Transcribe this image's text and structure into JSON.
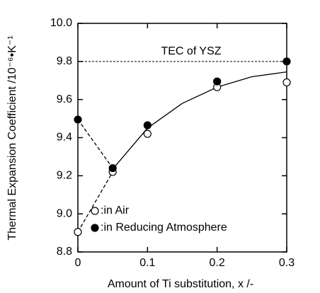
{
  "chart_data": {
    "type": "scatter",
    "xlabel": "Amount of Ti substitution, x /-",
    "ylabel": "Thermal Expansion Coefficient /10⁻⁶•K⁻¹",
    "x": [
      0,
      0.05,
      0.1,
      0.2,
      0.3
    ],
    "series": [
      {
        "name": ":in Air",
        "color": "#000000",
        "marker": "open",
        "values": [
          8.905,
          9.22,
          9.42,
          9.665,
          9.69
        ]
      },
      {
        "name": ":in Reducing Atmosphere",
        "color": "#000000",
        "marker": "filled",
        "values": [
          9.495,
          9.24,
          9.465,
          9.695,
          9.8
        ]
      }
    ],
    "curve": {
      "x": [
        0.05,
        0.1,
        0.15,
        0.2,
        0.25,
        0.3
      ],
      "values": [
        9.235,
        9.45,
        9.58,
        9.665,
        9.72,
        9.745
      ]
    },
    "reference_line": {
      "value": 9.8,
      "label": "TEC of YSZ"
    },
    "xlim": [
      0,
      0.3
    ],
    "xticks": [
      0,
      0.1,
      0.2,
      0.3
    ],
    "ylim": [
      8.8,
      10.0
    ],
    "yticks": [
      8.8,
      {
        "value": 9.0,
        "label": "9.0"
      },
      9.2,
      9.4,
      9.6,
      9.8,
      {
        "value": 10.0,
        "label": "10.0"
      }
    ],
    "legend": "lower-left",
    "grid": false
  }
}
